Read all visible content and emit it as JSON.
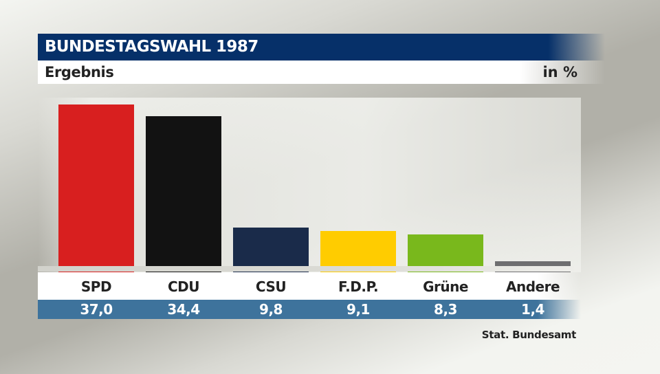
{
  "header": {
    "title": "BUNDESTAGSWAHL 1987",
    "subtitle": "Ergebnis",
    "unit": "in %"
  },
  "source": "Stat. Bundesamt",
  "colors": {
    "title_bar": "#063069",
    "values_row": "#3e739c",
    "SPD": "#d81f1f",
    "CDU": "#121212",
    "CSU": "#1a2b4a",
    "FDP": "#ffcc00",
    "Gruene": "#79b81c",
    "Andere": "#6e6e70"
  },
  "parties": [
    {
      "label": "SPD",
      "value": "37,0",
      "color": "#d81f1f"
    },
    {
      "label": "CDU",
      "value": "34,4",
      "color": "#121212"
    },
    {
      "label": "CSU",
      "value": "9,8",
      "color": "#1a2b4a"
    },
    {
      "label": "F.D.P.",
      "value": "9,1",
      "color": "#ffcc00"
    },
    {
      "label": "Grüne",
      "value": "8,3",
      "color": "#79b81c"
    },
    {
      "label": "Andere",
      "value": "1,4",
      "color": "#6e6e70"
    }
  ],
  "chart_data": {
    "type": "bar",
    "title": "BUNDESTAGSWAHL 1987",
    "subtitle": "Ergebnis",
    "xlabel": "",
    "ylabel": "in %",
    "categories": [
      "SPD",
      "CDU",
      "CSU",
      "F.D.P.",
      "Grüne",
      "Andere"
    ],
    "values": [
      37.0,
      34.4,
      9.8,
      9.1,
      8.3,
      1.4
    ],
    "colors": [
      "#d81f1f",
      "#121212",
      "#1a2b4a",
      "#ffcc00",
      "#79b81c",
      "#6e6e70"
    ],
    "data_labels": [
      "37,0",
      "34,4",
      "9,8",
      "9,1",
      "8,3",
      "1,4"
    ],
    "ylim": [
      0,
      40
    ],
    "grid": false,
    "legend": "none",
    "source": "Stat. Bundesamt"
  }
}
